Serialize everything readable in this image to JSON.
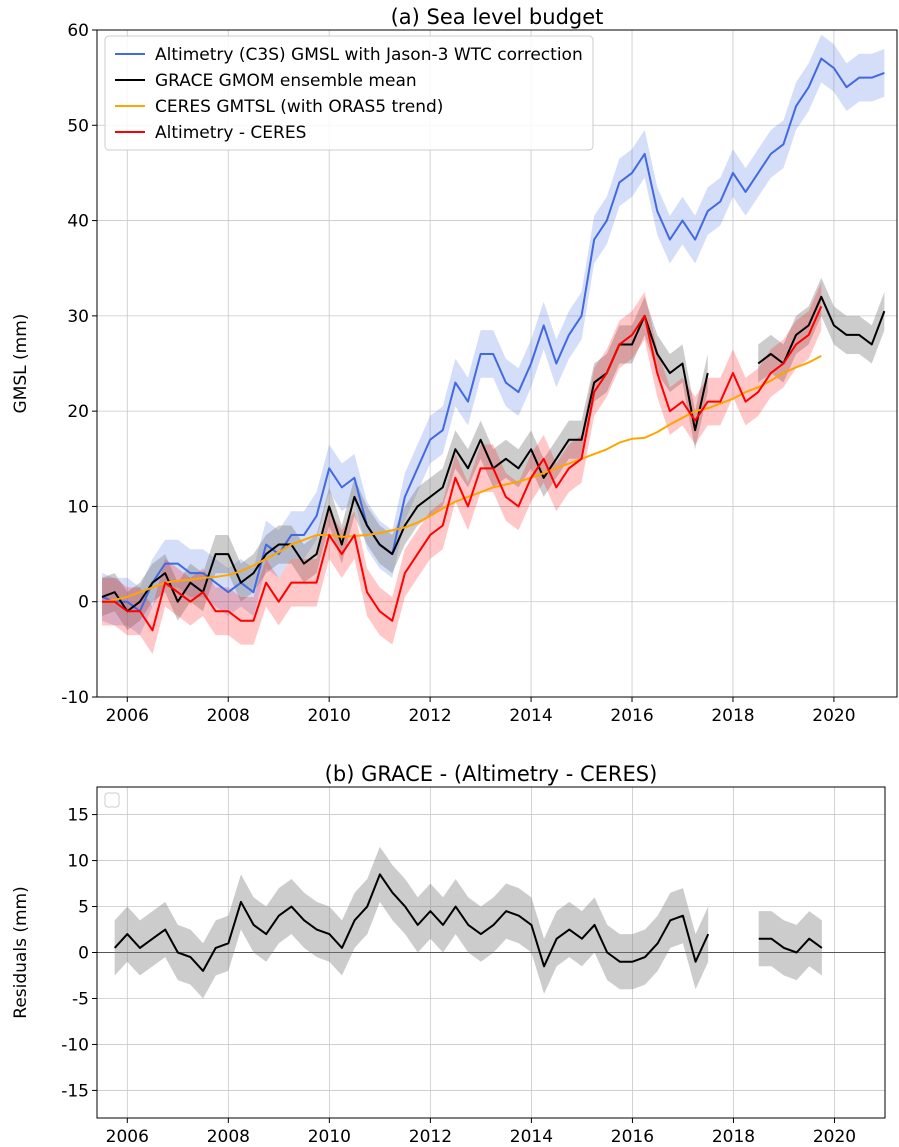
{
  "chart_data": [
    {
      "type": "line",
      "title": "(a) Sea level budget",
      "y_label": "GMSL (mm)",
      "x": [
        2005.5,
        2005.75,
        2006,
        2006.25,
        2006.5,
        2006.75,
        2007,
        2007.25,
        2007.5,
        2007.75,
        2008,
        2008.25,
        2008.5,
        2008.75,
        2009,
        2009.25,
        2009.5,
        2009.75,
        2010,
        2010.25,
        2010.5,
        2010.75,
        2011,
        2011.25,
        2011.5,
        2011.75,
        2012,
        2012.25,
        2012.5,
        2012.75,
        2013,
        2013.25,
        2013.5,
        2013.75,
        2014,
        2014.25,
        2014.5,
        2014.75,
        2015,
        2015.25,
        2015.5,
        2015.75,
        2016,
        2016.25,
        2016.5,
        2016.75,
        2017,
        2017.25,
        2017.5,
        2017.75,
        2018,
        2018.25,
        2018.5,
        2018.75,
        2019,
        2019.25,
        2019.5,
        2019.75,
        2020,
        2020.25,
        2020.5,
        2020.75,
        2021
      ],
      "xlim": [
        2005.4,
        2021.25
      ],
      "xticks": [
        2006,
        2008,
        2010,
        2012,
        2014,
        2016,
        2018,
        2020
      ],
      "ylim": [
        -10,
        60
      ],
      "yticks": [
        -10,
        0,
        10,
        20,
        30,
        40,
        50,
        60
      ],
      "grid": true,
      "legend": "upper left",
      "series": [
        {
          "name": "Altimetry (C3S) GMSL with Jason-3 WTC correction",
          "color": "#4169e1",
          "band": 2.5,
          "values": [
            0.5,
            0,
            0,
            -1,
            2,
            4,
            4,
            3,
            3,
            2,
            1,
            2,
            1,
            6,
            5,
            7,
            7,
            9,
            14,
            12,
            13,
            8,
            6,
            5,
            11,
            14,
            17,
            18,
            23,
            21,
            26,
            26,
            23,
            22,
            25,
            29,
            25,
            28,
            30,
            38,
            40,
            44,
            45,
            47,
            41,
            38,
            40,
            38,
            41,
            42,
            45,
            43,
            45,
            47,
            48,
            52,
            54,
            57,
            56,
            54,
            55,
            55,
            55.5
          ]
        },
        {
          "name": "GRACE GMOM ensemble mean",
          "color": "#000000",
          "band": 2,
          "values": [
            0.5,
            1,
            -1,
            0,
            2,
            3,
            0,
            2,
            1,
            5,
            5,
            2,
            3,
            5,
            6,
            6,
            4,
            5,
            10,
            6,
            11,
            8,
            6,
            5,
            8,
            10,
            11,
            12,
            16,
            14,
            17,
            14,
            15,
            14,
            16,
            13,
            15,
            17,
            17,
            23,
            24,
            27,
            27,
            30,
            26,
            24,
            25,
            18,
            24,
            null,
            null,
            null,
            25,
            26,
            25,
            28,
            29,
            32,
            29,
            28,
            28,
            27,
            30.5
          ]
        },
        {
          "name": "CERES GMTSL (with ORAS5 trend)",
          "color": "#ffa500",
          "values": [
            0,
            0.2,
            0.5,
            1,
            1.5,
            2,
            2.2,
            2.3,
            2.5,
            2.6,
            2.8,
            3.2,
            3.8,
            4.5,
            5.2,
            6,
            6.5,
            7,
            7,
            6.8,
            6.9,
            7,
            7.2,
            7.5,
            7.8,
            8.3,
            9,
            9.8,
            10.5,
            11,
            11.5,
            12,
            12.3,
            12.6,
            13,
            13.5,
            14,
            14.5,
            15,
            15.5,
            16,
            16.7,
            17.1,
            17.2,
            17.8,
            18.6,
            19.3,
            20,
            20.3,
            20.8,
            21.3,
            22,
            22.5,
            23.2,
            24,
            24.6,
            25.1,
            25.8,
            null,
            null,
            null,
            null,
            null
          ]
        },
        {
          "name": "Altimetry - CERES",
          "color": "#ff0000",
          "band": 2.5,
          "values": [
            0,
            0,
            -1,
            -1,
            -3,
            2,
            1,
            0,
            1,
            -1,
            -1,
            -2,
            -2,
            2,
            0,
            2,
            2,
            2,
            7,
            5,
            7,
            1,
            -1,
            -2,
            3,
            5,
            7,
            8,
            13,
            10,
            14,
            14,
            11,
            10,
            13,
            15,
            12,
            14,
            15,
            22,
            24,
            27,
            28,
            30,
            24,
            20,
            21,
            19,
            21,
            21,
            24,
            21,
            22,
            24,
            25,
            27,
            28,
            31,
            null,
            null,
            null,
            null,
            null
          ]
        }
      ]
    },
    {
      "type": "line",
      "title": "(b) GRACE - (Altimetry - CERES)",
      "y_label": "Residuals (mm)",
      "x": [
        2005.5,
        2005.75,
        2006,
        2006.25,
        2006.5,
        2006.75,
        2007,
        2007.25,
        2007.5,
        2007.75,
        2008,
        2008.25,
        2008.5,
        2008.75,
        2009,
        2009.25,
        2009.5,
        2009.75,
        2010,
        2010.25,
        2010.5,
        2010.75,
        2011,
        2011.25,
        2011.5,
        2011.75,
        2012,
        2012.25,
        2012.5,
        2012.75,
        2013,
        2013.25,
        2013.5,
        2013.75,
        2014,
        2014.25,
        2014.5,
        2014.75,
        2015,
        2015.25,
        2015.5,
        2015.75,
        2016,
        2016.25,
        2016.5,
        2016.75,
        2017,
        2017.25,
        2017.5,
        2017.75,
        2018,
        2018.25,
        2018.5,
        2018.75,
        2019,
        2019.25,
        2019.5,
        2019.75,
        2020,
        2020.25,
        2020.5,
        2020.75,
        2021
      ],
      "xlim": [
        2005.4,
        2021.0
      ],
      "xticks": [
        2006,
        2008,
        2010,
        2012,
        2014,
        2016,
        2018,
        2020
      ],
      "ylim": [
        -18,
        18
      ],
      "yticks": [
        -15,
        -10,
        -5,
        0,
        5,
        10,
        15
      ],
      "grid": true,
      "hline": 0,
      "series": [
        {
          "color": "#000000",
          "band": 3,
          "values": [
            null,
            0.5,
            2,
            0.5,
            1.5,
            2.5,
            0,
            -0.5,
            -2,
            0.5,
            1,
            5.5,
            3,
            2,
            4,
            5,
            3.5,
            2.5,
            2,
            0.5,
            3.5,
            5,
            8.5,
            6.5,
            5,
            3,
            4.5,
            3,
            5,
            3,
            2,
            3,
            4.5,
            4,
            3,
            -1.5,
            1.5,
            2.5,
            1.5,
            3,
            0,
            -1,
            -1,
            -0.5,
            1,
            3.5,
            4,
            -1,
            2,
            null,
            null,
            null,
            1.5,
            1.5,
            0.5,
            0,
            1.5,
            0.5,
            null,
            null,
            null,
            null,
            null
          ]
        }
      ]
    }
  ]
}
